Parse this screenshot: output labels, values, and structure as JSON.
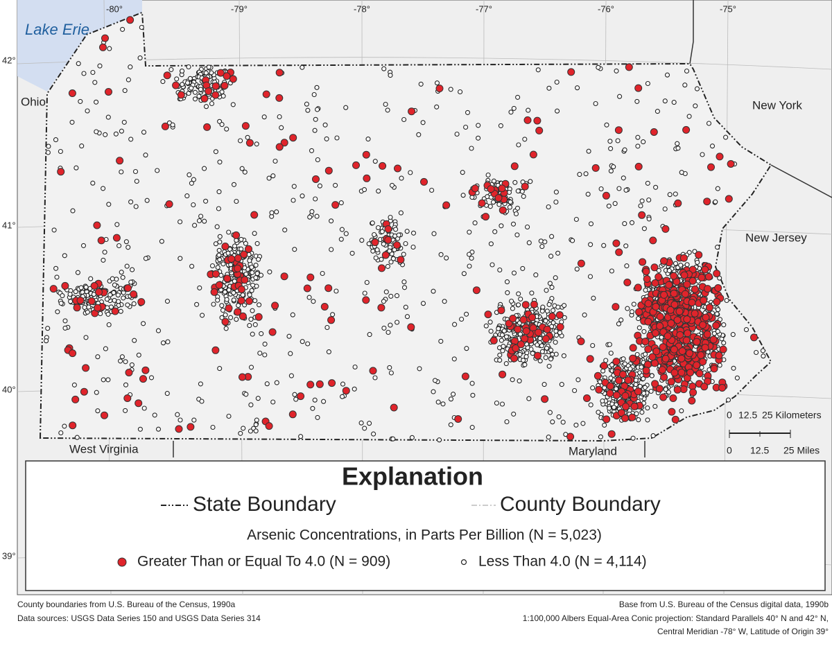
{
  "map": {
    "place_labels": {
      "lake": "Lake Erie",
      "ohio": "Ohio",
      "new_york": "New York",
      "new_jersey": "New Jersey",
      "west_virginia": "West Virginia",
      "maryland": "Maryland"
    },
    "longitude_labels": [
      "-80°",
      "-79°",
      "-78°",
      "-77°",
      "-76°",
      "-75°"
    ],
    "latitude_labels": [
      "42°",
      "41°",
      "40°",
      "39°"
    ],
    "scale_bar": {
      "km": [
        "0",
        "12.5",
        "25 Kilometers"
      ],
      "miles": [
        "0",
        "12.5",
        "25 Miles"
      ]
    },
    "legend": {
      "title": "Explanation",
      "state_boundary": "State Boundary",
      "county_boundary": "County Boundary",
      "subtitle": "Arsenic Concentrations, in Parts Per Billion (N = 5,023)",
      "high": "Greater Than or Equal To 4.0 (N = 909)",
      "low": "Less Than 4.0 (N = 4,114)"
    },
    "footnotes_left": [
      "County boundaries from U.S. Bureau of the Census, 1990a",
      "Data sources: USGS Data Series 150 and USGS Data Series 314"
    ],
    "footnotes_right": [
      "Base from U.S. Bureau of the Census digital data, 1990b",
      "1:100,000 Albers Equal-Area Conic projection: Standard Parallels 40° N and 42° N,",
      "Central Meridian -78° W, Latitude of Origin 39°"
    ]
  }
}
